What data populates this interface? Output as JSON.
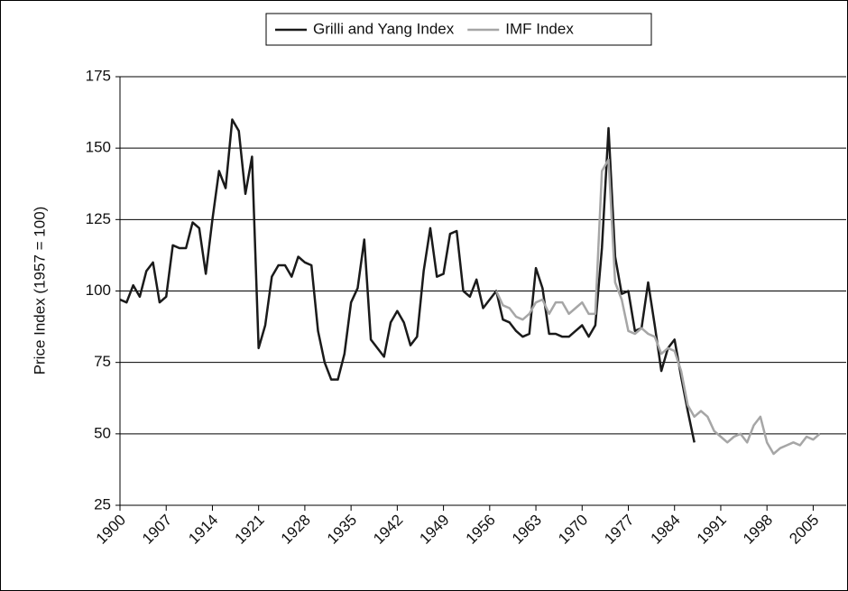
{
  "chart_data": {
    "type": "line",
    "y_label": "Price Index (1957 = 100)",
    "xlim": [
      1900,
      2010
    ],
    "xticks": [
      1900,
      1907,
      1914,
      1921,
      1928,
      1935,
      1942,
      1949,
      1956,
      1963,
      1970,
      1977,
      1984,
      1991,
      1998,
      2005
    ],
    "ylim": [
      25,
      175
    ],
    "yticks": [
      25,
      50,
      75,
      100,
      125,
      150,
      175
    ],
    "grid": true,
    "legend": "top",
    "series": [
      {
        "name": "Grilli and Yang Index",
        "color": "#1a1a1a",
        "x": [
          1900,
          1901,
          1902,
          1903,
          1904,
          1905,
          1906,
          1907,
          1908,
          1909,
          1910,
          1911,
          1912,
          1913,
          1914,
          1915,
          1916,
          1917,
          1918,
          1919,
          1920,
          1921,
          1922,
          1923,
          1924,
          1925,
          1926,
          1927,
          1928,
          1929,
          1930,
          1931,
          1932,
          1933,
          1934,
          1935,
          1936,
          1937,
          1938,
          1939,
          1940,
          1941,
          1942,
          1943,
          1944,
          1945,
          1946,
          1947,
          1948,
          1949,
          1950,
          1951,
          1952,
          1953,
          1954,
          1955,
          1956,
          1957,
          1958,
          1959,
          1960,
          1961,
          1962,
          1963,
          1964,
          1965,
          1966,
          1967,
          1968,
          1969,
          1970,
          1971,
          1972,
          1973,
          1974,
          1975,
          1976,
          1977,
          1978,
          1979,
          1980,
          1981,
          1982,
          1983,
          1984,
          1985,
          1986,
          1987
        ],
        "values": [
          97,
          96,
          102,
          98,
          107,
          110,
          96,
          98,
          116,
          115,
          115,
          124,
          122,
          106,
          125,
          142,
          136,
          160,
          156,
          134,
          147,
          80,
          88,
          105,
          109,
          109,
          105,
          112,
          110,
          109,
          86,
          75,
          69,
          69,
          78,
          96,
          101,
          118,
          83,
          80,
          77,
          89,
          93,
          89,
          81,
          84,
          107,
          122,
          105,
          106,
          120,
          121,
          100,
          98,
          104,
          94,
          97,
          100,
          90,
          89,
          86,
          84,
          85,
          108,
          101,
          85,
          85,
          84,
          84,
          86,
          88,
          84,
          88,
          115,
          157,
          112,
          99,
          100,
          86,
          87,
          103,
          88,
          72,
          80,
          83,
          70,
          58,
          47
        ]
      },
      {
        "name": "IMF Index",
        "color": "#a6a6a6",
        "x": [
          1957,
          1958,
          1959,
          1960,
          1961,
          1962,
          1963,
          1964,
          1965,
          1966,
          1967,
          1968,
          1969,
          1970,
          1971,
          1972,
          1973,
          1974,
          1975,
          1976,
          1977,
          1978,
          1979,
          1980,
          1981,
          1982,
          1983,
          1984,
          1985,
          1986,
          1987,
          1988,
          1989,
          1990,
          1991,
          1992,
          1993,
          1994,
          1995,
          1996,
          1997,
          1998,
          1999,
          2000,
          2001,
          2002,
          2003,
          2004,
          2005,
          2006
        ],
        "values": [
          100,
          95,
          94,
          91,
          90,
          92,
          96,
          97,
          92,
          96,
          96,
          92,
          94,
          96,
          92,
          92,
          142,
          146,
          103,
          97,
          86,
          85,
          87,
          85,
          84,
          78,
          80,
          79,
          72,
          60,
          56,
          58,
          56,
          51,
          49,
          47,
          49,
          50,
          47,
          53,
          56,
          47,
          43,
          45,
          46,
          47,
          46,
          49,
          48,
          50
        ]
      }
    ]
  }
}
